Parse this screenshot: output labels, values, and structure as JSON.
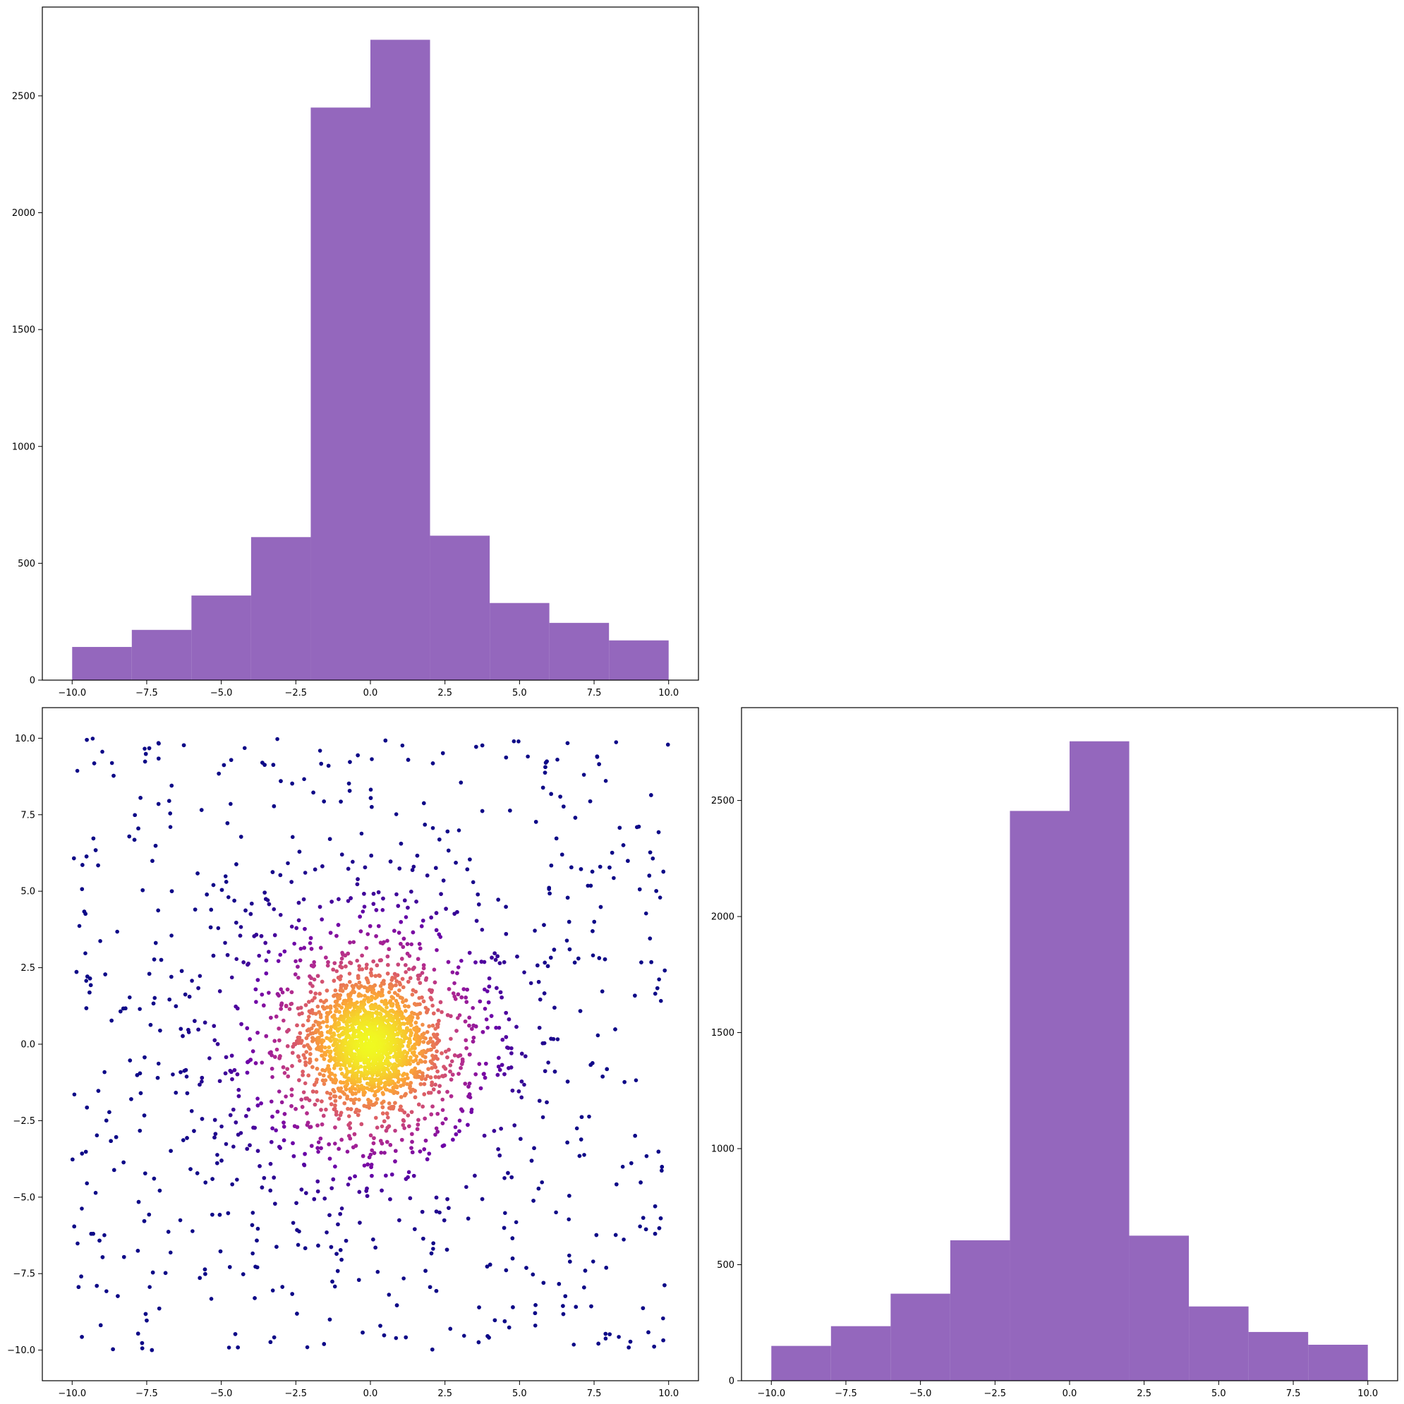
{
  "chart_data": [
    {
      "type": "bar",
      "subtype": "histogram",
      "position": "top-left",
      "bin_edges": [
        -10,
        -8,
        -6,
        -4,
        -2,
        0,
        2,
        4,
        6,
        8,
        10
      ],
      "values": [
        142,
        215,
        362,
        612,
        2450,
        2740,
        618,
        330,
        245,
        170
      ],
      "color": "#9467bd",
      "xlim": [
        -11,
        11
      ],
      "ylim": [
        0,
        2880
      ],
      "xticks": [
        -10.0,
        -7.5,
        -5.0,
        -2.5,
        0.0,
        2.5,
        5.0,
        7.5,
        10.0
      ],
      "xtick_labels": [
        "−10.0",
        "−7.5",
        "−5.0",
        "−2.5",
        "0.0",
        "2.5",
        "5.0",
        "7.5",
        "10.0"
      ],
      "yticks": [
        0,
        500,
        1000,
        1500,
        2000,
        2500
      ],
      "ytick_labels": [
        "0",
        "500",
        "1000",
        "1500",
        "2000",
        "2500"
      ],
      "title": "",
      "xlabel": "",
      "ylabel": ""
    },
    {
      "type": "scatter",
      "position": "bottom-left",
      "description": "approximately 5000 points concentrated around the origin (heavy-tailed), both coordinates limited to [-10, 10]; colored by local density using the plasma colormap (dark purple = sparse, yellow = dense at center)",
      "n_points_approx": 5000,
      "center": [
        0,
        0
      ],
      "x_range": [
        -10,
        10
      ],
      "y_range": [
        -10,
        10
      ],
      "colormap": [
        "#0d0887",
        "#6a00a8",
        "#b12a90",
        "#e16462",
        "#fca636",
        "#f0f921"
      ],
      "xlim": [
        -11,
        11
      ],
      "ylim": [
        -11,
        11
      ],
      "xticks": [
        -10.0,
        -7.5,
        -5.0,
        -2.5,
        0.0,
        2.5,
        5.0,
        7.5,
        10.0
      ],
      "xtick_labels": [
        "−10.0",
        "−7.5",
        "−5.0",
        "−2.5",
        "0.0",
        "2.5",
        "5.0",
        "7.5",
        "10.0"
      ],
      "yticks": [
        -10.0,
        -7.5,
        -5.0,
        -2.5,
        0.0,
        2.5,
        5.0,
        7.5,
        10.0
      ],
      "ytick_labels": [
        "−10.0",
        "−7.5",
        "−5.0",
        "−2.5",
        "0.0",
        "2.5",
        "5.0",
        "7.5",
        "10.0"
      ],
      "title": "",
      "xlabel": "",
      "ylabel": ""
    },
    {
      "type": "bar",
      "subtype": "histogram",
      "position": "bottom-right",
      "bin_edges": [
        -10,
        -8,
        -6,
        -4,
        -2,
        0,
        2,
        4,
        6,
        8,
        10
      ],
      "values": [
        150,
        235,
        375,
        605,
        2455,
        2755,
        625,
        320,
        210,
        155
      ],
      "color": "#9467bd",
      "xlim": [
        -11,
        11
      ],
      "ylim": [
        0,
        2900
      ],
      "xticks": [
        -10.0,
        -7.5,
        -5.0,
        -2.5,
        0.0,
        2.5,
        5.0,
        7.5,
        10.0
      ],
      "xtick_labels": [
        "−10.0",
        "−7.5",
        "−5.0",
        "−2.5",
        "0.0",
        "2.5",
        "5.0",
        "7.5",
        "10.0"
      ],
      "yticks": [
        0,
        500,
        1000,
        1500,
        2000,
        2500
      ],
      "ytick_labels": [
        "0",
        "500",
        "1000",
        "1500",
        "2000",
        "2500"
      ],
      "title": "",
      "xlabel": "",
      "ylabel": ""
    }
  ]
}
